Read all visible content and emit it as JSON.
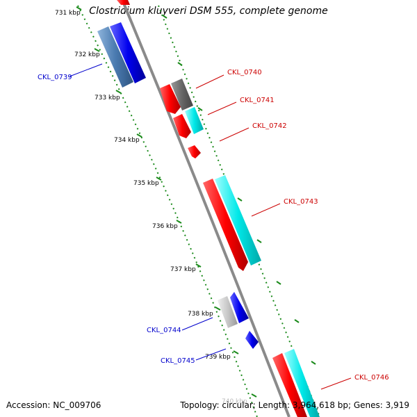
{
  "title": "Clostridium kluyveri DSM 555, complete genome",
  "footer": {
    "accession": "Accession: NC_009706",
    "topology": "Topology: circular; Length: 3,964,618 bp; Genes: 3,919"
  },
  "scale_ticks": [
    {
      "label": "731 kbp"
    },
    {
      "label": "732 kbp"
    },
    {
      "label": "733 kbp"
    },
    {
      "label": "734 kbp"
    },
    {
      "label": "735 kbp"
    },
    {
      "label": "736 kbp"
    },
    {
      "label": "737 kbp"
    },
    {
      "label": "738 kbp"
    },
    {
      "label": "739 kbp"
    },
    {
      "label": "740 kbp"
    }
  ],
  "genes": [
    {
      "label": "CKL_0739",
      "color": "#0000cc"
    },
    {
      "label": "CKL_0740",
      "color": "#cc0000"
    },
    {
      "label": "CKL_0741",
      "color": "#cc0000"
    },
    {
      "label": "CKL_0742",
      "color": "#cc0000"
    },
    {
      "label": "CKL_0743",
      "color": "#cc0000"
    },
    {
      "label": "CKL_0744",
      "color": "#0000cc"
    },
    {
      "label": "CKL_0745",
      "color": "#0000cc"
    },
    {
      "label": "CKL_0746",
      "color": "#cc0000"
    }
  ],
  "colors": {
    "backbone": "#8a8a8a",
    "tick": "#1a8a1a",
    "cds_forward": "#ff0000",
    "cds_reverse": "#0000ee",
    "rna_forward": "#00eaea",
    "rna_reverse": "#4a7ab0",
    "other_gray": "#666666",
    "other_light": "#c0c0c0"
  }
}
